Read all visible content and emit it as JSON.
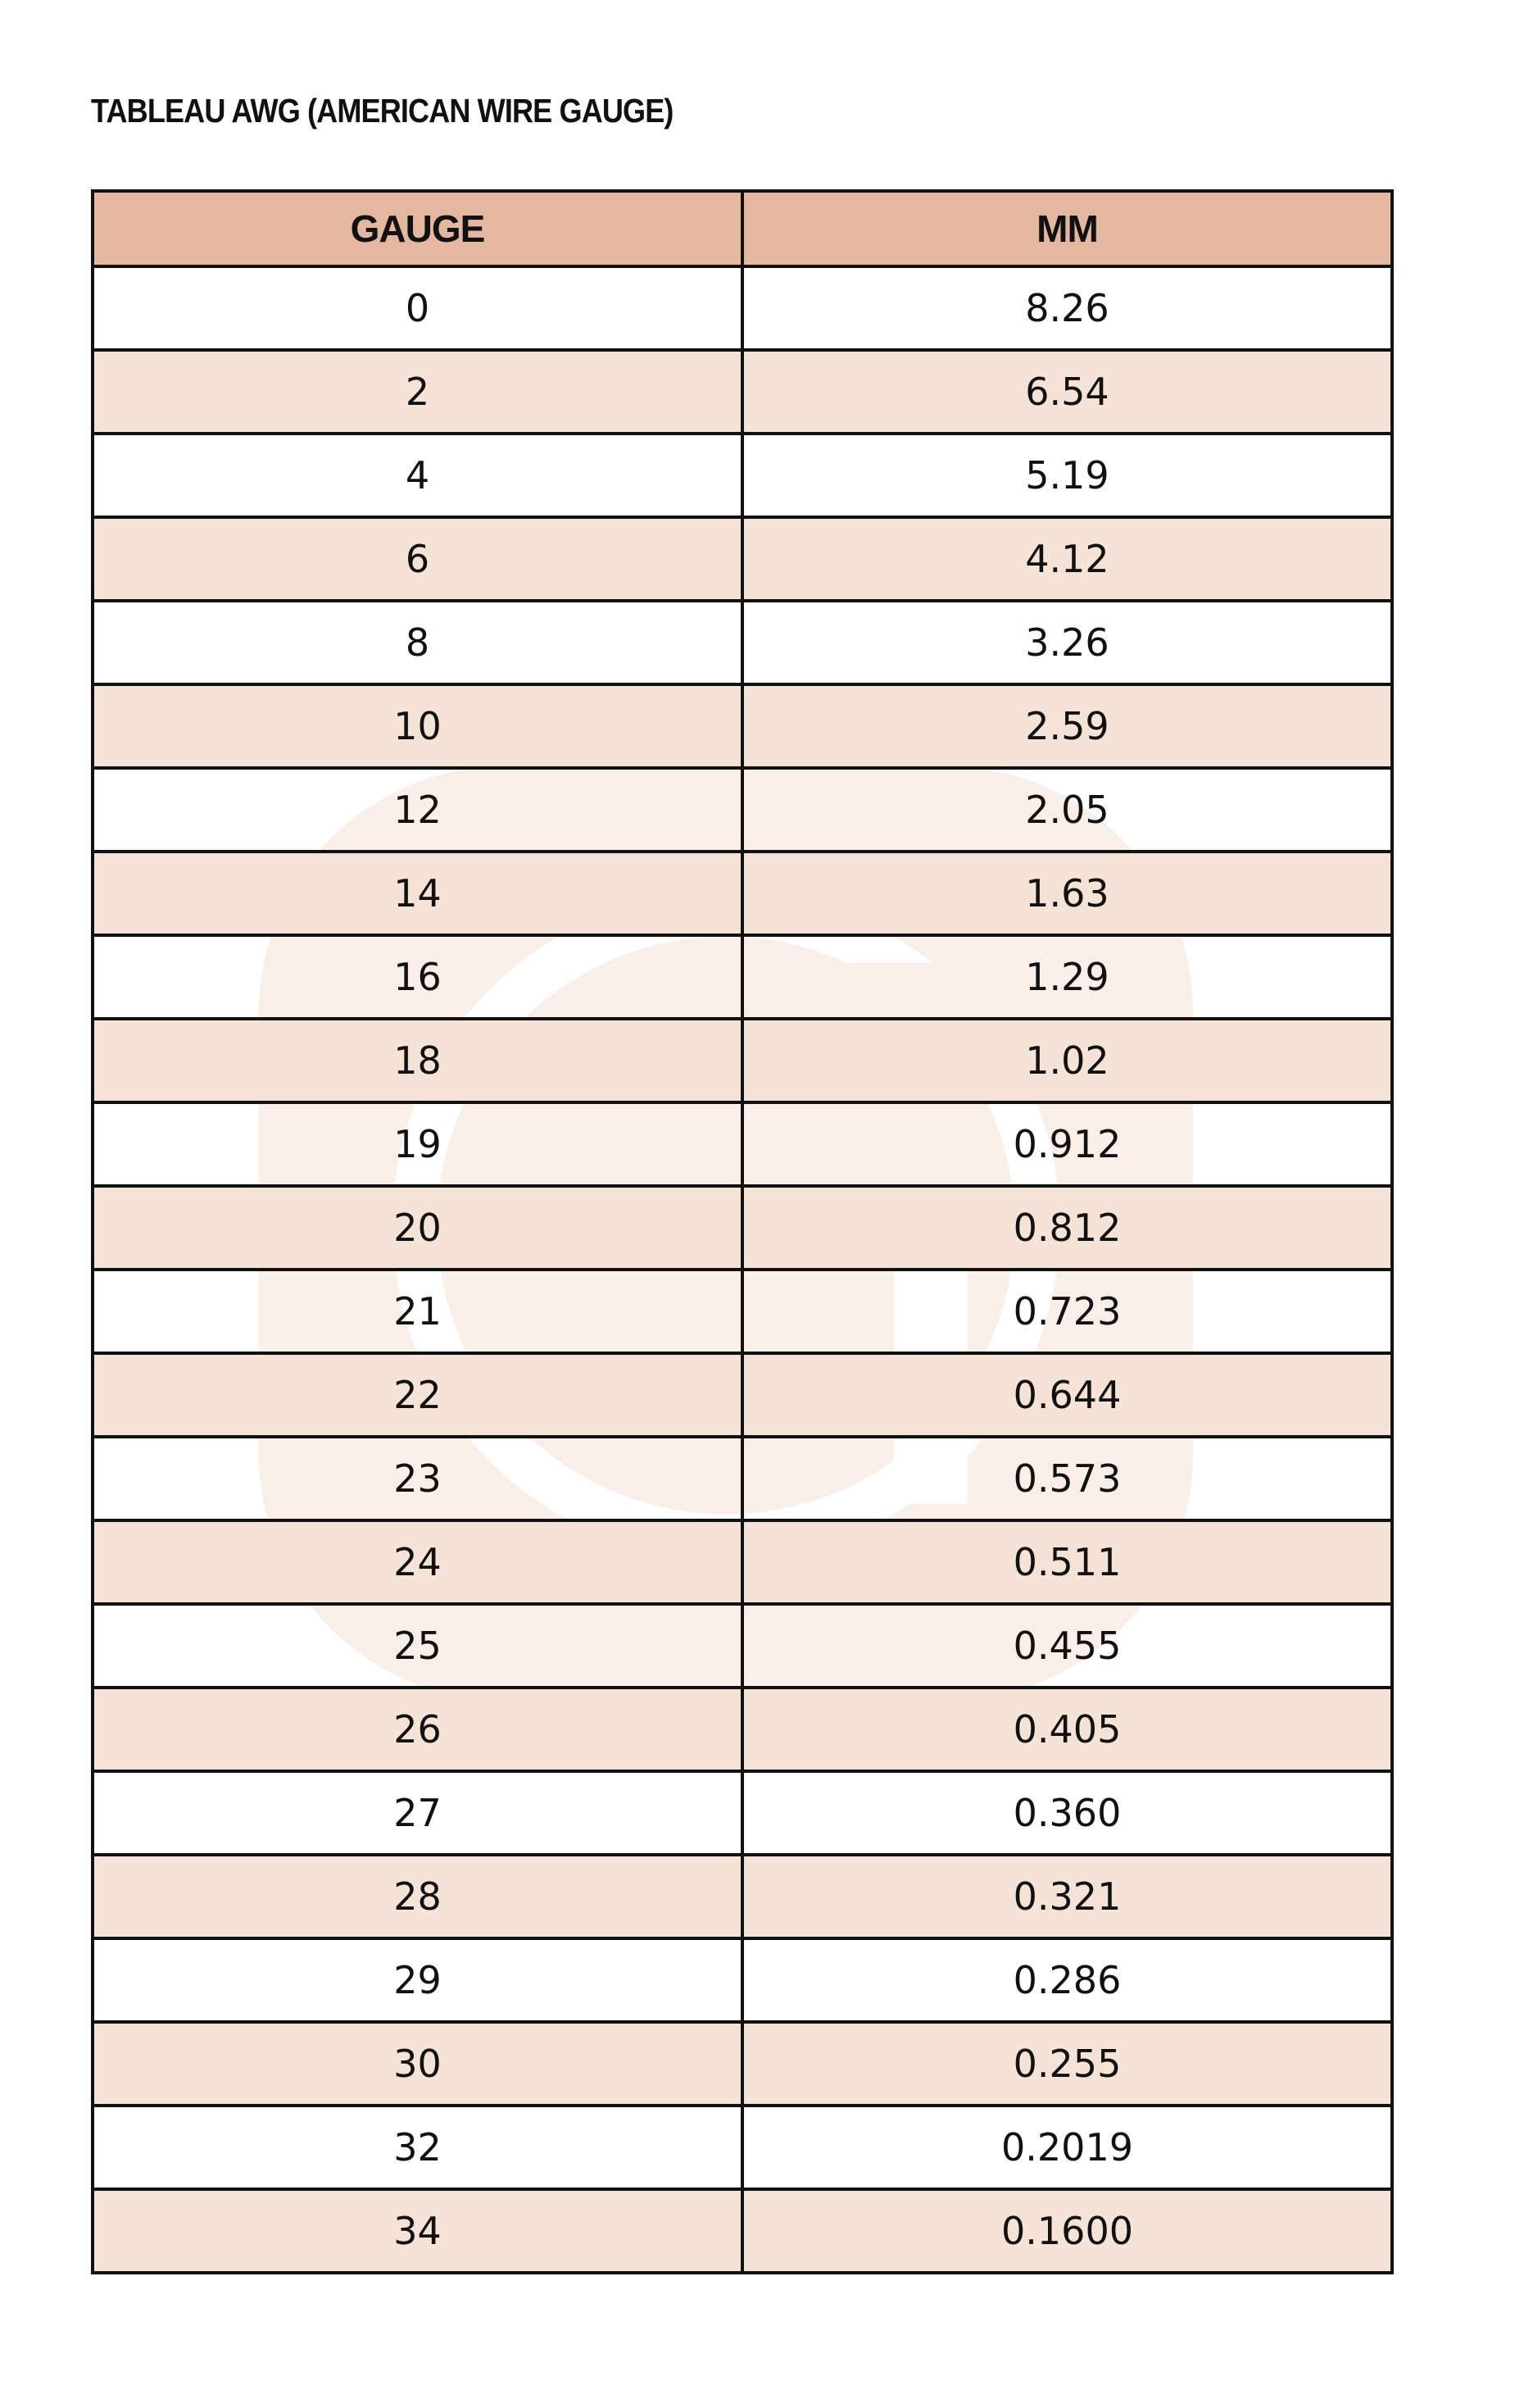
{
  "title": "TABLEAU AWG (AMERICAN WIRE GAUGE)",
  "colors": {
    "header": "#e4b8a0",
    "stripe": "#f5e3d8",
    "watermark": "#f9eee8"
  },
  "table": {
    "headers": [
      "GAUGE",
      "MM"
    ],
    "rows": [
      [
        "0",
        "8.26"
      ],
      [
        "2",
        "6.54"
      ],
      [
        "4",
        "5.19"
      ],
      [
        "6",
        "4.12"
      ],
      [
        "8",
        "3.26"
      ],
      [
        "10",
        "2.59"
      ],
      [
        "12",
        "2.05"
      ],
      [
        "14",
        "1.63"
      ],
      [
        "16",
        "1.29"
      ],
      [
        "18",
        "1.02"
      ],
      [
        "19",
        "0.912"
      ],
      [
        "20",
        "0.812"
      ],
      [
        "21",
        "0.723"
      ],
      [
        "22",
        "0.644"
      ],
      [
        "23",
        "0.573"
      ],
      [
        "24",
        "0.511"
      ],
      [
        "25",
        "0.455"
      ],
      [
        "26",
        "0.405"
      ],
      [
        "27",
        "0.360"
      ],
      [
        "28",
        "0.321"
      ],
      [
        "29",
        "0.286"
      ],
      [
        "30",
        "0.255"
      ],
      [
        "32",
        "0.2019"
      ],
      [
        "34",
        "0.1600"
      ]
    ]
  }
}
